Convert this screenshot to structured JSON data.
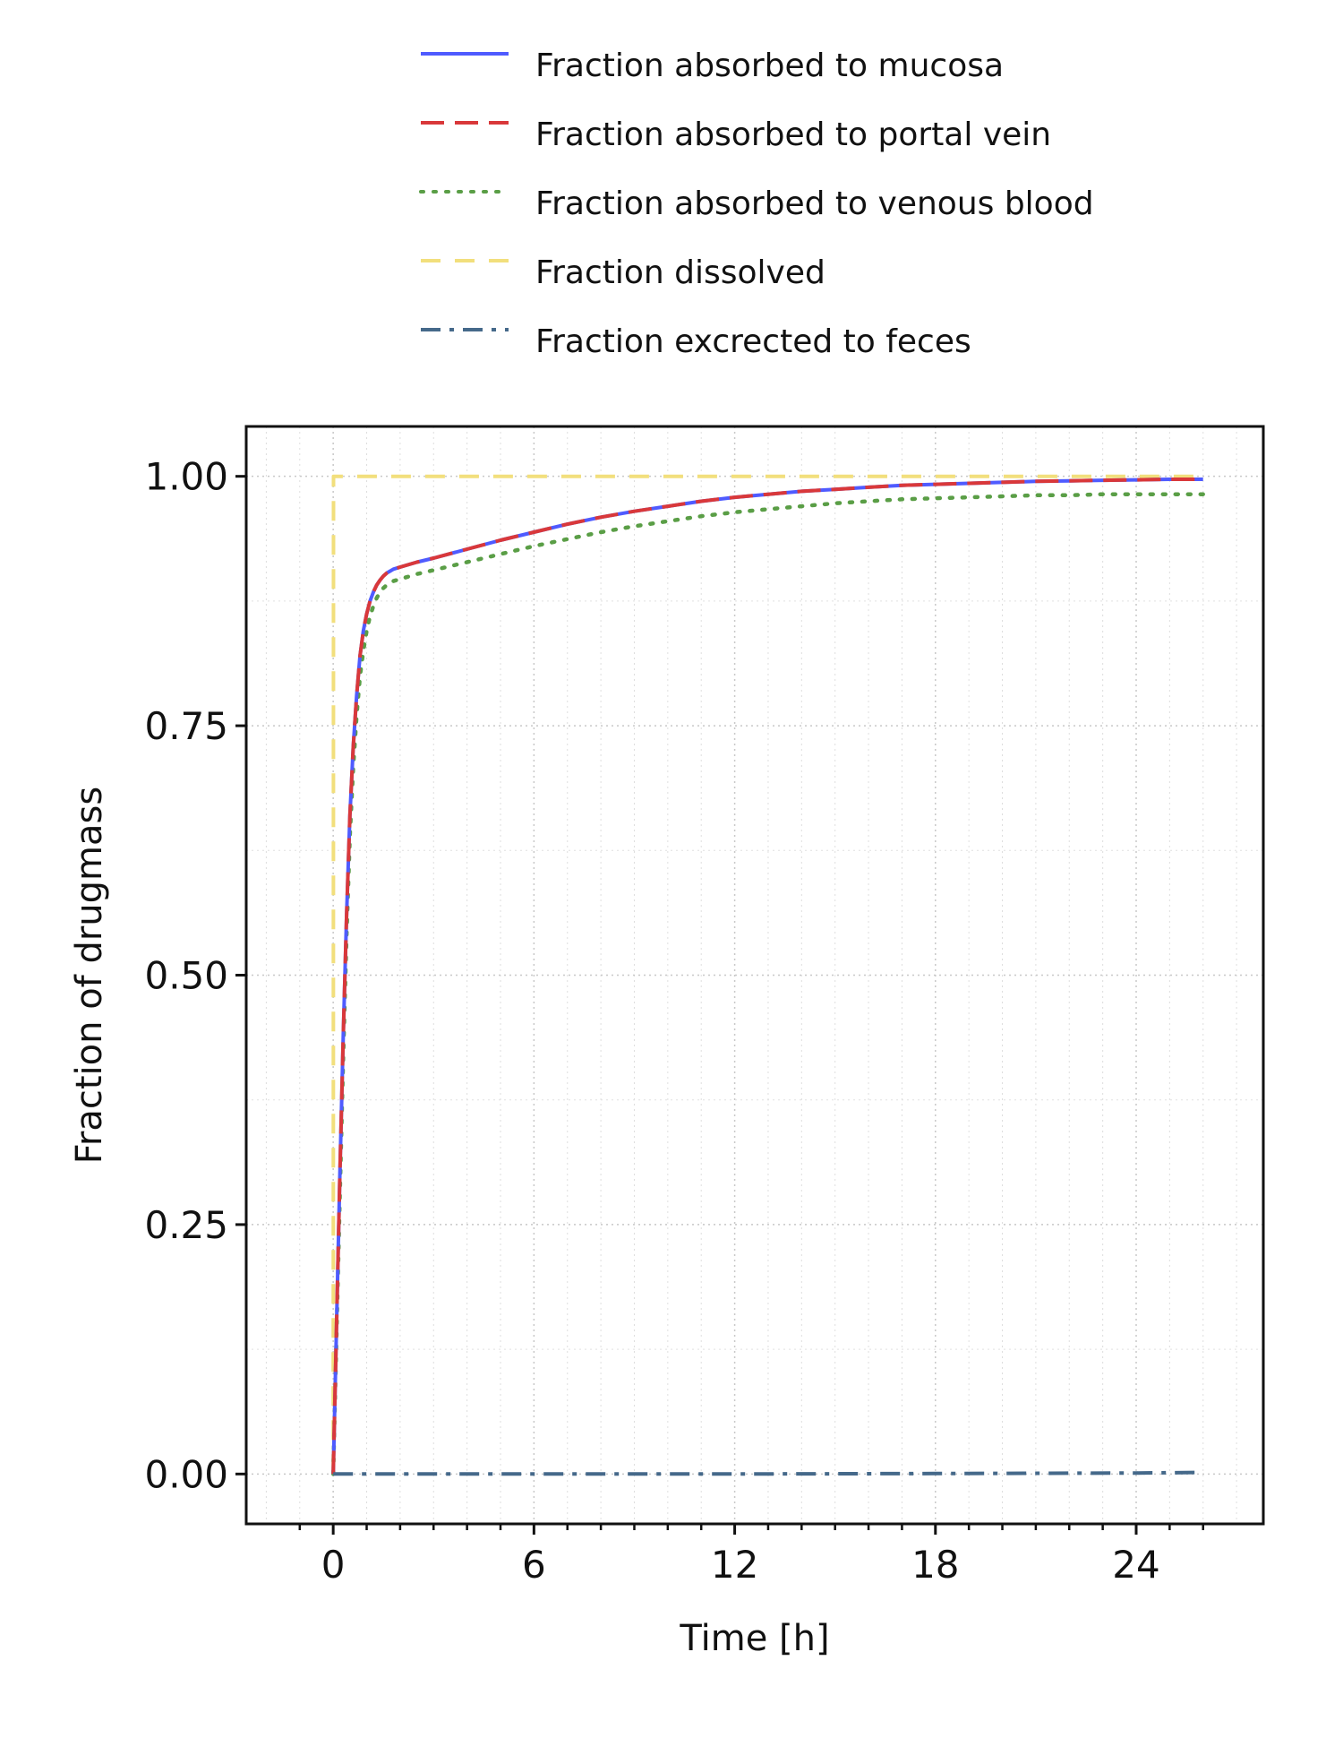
{
  "chart_data": {
    "type": "line",
    "xlabel": "Time [h]",
    "ylabel": "Fraction of drugmass",
    "xlim": [
      -2.6,
      27.8
    ],
    "ylim": [
      -0.05,
      1.05
    ],
    "xticks": [
      0,
      6,
      12,
      18,
      24
    ],
    "xtick_labels": [
      "0",
      "6",
      "12",
      "18",
      "24"
    ],
    "yticks": [
      0,
      0.25,
      0.5,
      0.75,
      1.0
    ],
    "ytick_labels": [
      "0.00",
      "0.25",
      "0.50",
      "0.75",
      "1.00"
    ],
    "grid": true,
    "legend_position": "top",
    "series": [
      {
        "name": "Fraction absorbed to mucosa",
        "color": "#4f5bff",
        "dash": "solid",
        "x": [
          0,
          0.1,
          0.2,
          0.3,
          0.4,
          0.5,
          0.6,
          0.7,
          0.8,
          0.9,
          1.0,
          1.1,
          1.2,
          1.3,
          1.4,
          1.5,
          1.6,
          1.7,
          1.8,
          2.0,
          2.5,
          3,
          4,
          5,
          6,
          7,
          8,
          9,
          10,
          11,
          12,
          13,
          14,
          15,
          16,
          17,
          18,
          19,
          20,
          21,
          22,
          23,
          24,
          25,
          26
        ],
        "y": [
          0,
          0.15,
          0.3,
          0.44,
          0.56,
          0.66,
          0.73,
          0.78,
          0.82,
          0.845,
          0.862,
          0.875,
          0.884,
          0.891,
          0.896,
          0.9,
          0.903,
          0.905,
          0.907,
          0.909,
          0.914,
          0.918,
          0.927,
          0.936,
          0.944,
          0.952,
          0.959,
          0.965,
          0.97,
          0.975,
          0.979,
          0.982,
          0.985,
          0.987,
          0.989,
          0.991,
          0.992,
          0.993,
          0.994,
          0.995,
          0.9955,
          0.996,
          0.9965,
          0.997,
          0.997
        ]
      },
      {
        "name": "Fraction absorbed to portal vein",
        "color": "#d9383a",
        "dash": "long-dash",
        "x": [
          0,
          0.1,
          0.2,
          0.3,
          0.4,
          0.5,
          0.6,
          0.7,
          0.8,
          0.9,
          1.0,
          1.1,
          1.2,
          1.3,
          1.4,
          1.5,
          1.6,
          1.7,
          1.8,
          2.0,
          2.5,
          3,
          4,
          5,
          6,
          7,
          8,
          9,
          10,
          11,
          12,
          13,
          14,
          15,
          16,
          17,
          18,
          19,
          20,
          21,
          22,
          23,
          24,
          25,
          26
        ],
        "y": [
          0,
          0.15,
          0.3,
          0.44,
          0.56,
          0.66,
          0.73,
          0.78,
          0.82,
          0.845,
          0.862,
          0.875,
          0.884,
          0.891,
          0.896,
          0.9,
          0.903,
          0.905,
          0.907,
          0.909,
          0.914,
          0.918,
          0.927,
          0.936,
          0.944,
          0.952,
          0.959,
          0.965,
          0.97,
          0.975,
          0.979,
          0.982,
          0.985,
          0.987,
          0.989,
          0.991,
          0.992,
          0.993,
          0.994,
          0.995,
          0.9955,
          0.996,
          0.9965,
          0.997,
          0.997
        ]
      },
      {
        "name": "Fraction absorbed to venous blood",
        "color": "#5a9e46",
        "dash": "dotted",
        "x": [
          0,
          0.1,
          0.2,
          0.3,
          0.4,
          0.5,
          0.6,
          0.7,
          0.8,
          0.9,
          1.0,
          1.1,
          1.2,
          1.3,
          1.4,
          1.5,
          1.6,
          1.7,
          1.8,
          2.0,
          2.5,
          3,
          4,
          5,
          6,
          7,
          8,
          9,
          10,
          11,
          12,
          13,
          14,
          15,
          16,
          17,
          18,
          19,
          20,
          21,
          22,
          23,
          24,
          25,
          26
        ],
        "y": [
          0,
          0.14,
          0.28,
          0.42,
          0.54,
          0.64,
          0.71,
          0.76,
          0.8,
          0.825,
          0.845,
          0.86,
          0.87,
          0.878,
          0.884,
          0.888,
          0.891,
          0.893,
          0.895,
          0.897,
          0.902,
          0.906,
          0.914,
          0.922,
          0.93,
          0.937,
          0.944,
          0.95,
          0.955,
          0.96,
          0.964,
          0.967,
          0.97,
          0.973,
          0.975,
          0.977,
          0.978,
          0.979,
          0.98,
          0.981,
          0.981,
          0.982,
          0.982,
          0.982,
          0.982
        ]
      },
      {
        "name": "Fraction dissolved",
        "color": "#f2df7c",
        "dash": "dashed",
        "x": [
          0,
          0.01,
          1,
          6,
          12,
          18,
          24,
          26
        ],
        "y": [
          0,
          1,
          1,
          1,
          1,
          1,
          1,
          1
        ]
      },
      {
        "name": "Fraction excrected to feces",
        "color": "#45698a",
        "dash": "dash-dot",
        "x": [
          0,
          6,
          12,
          18,
          24,
          26
        ],
        "y": [
          0,
          0,
          0,
          0.0005,
          0.001,
          0.0015
        ]
      }
    ]
  }
}
